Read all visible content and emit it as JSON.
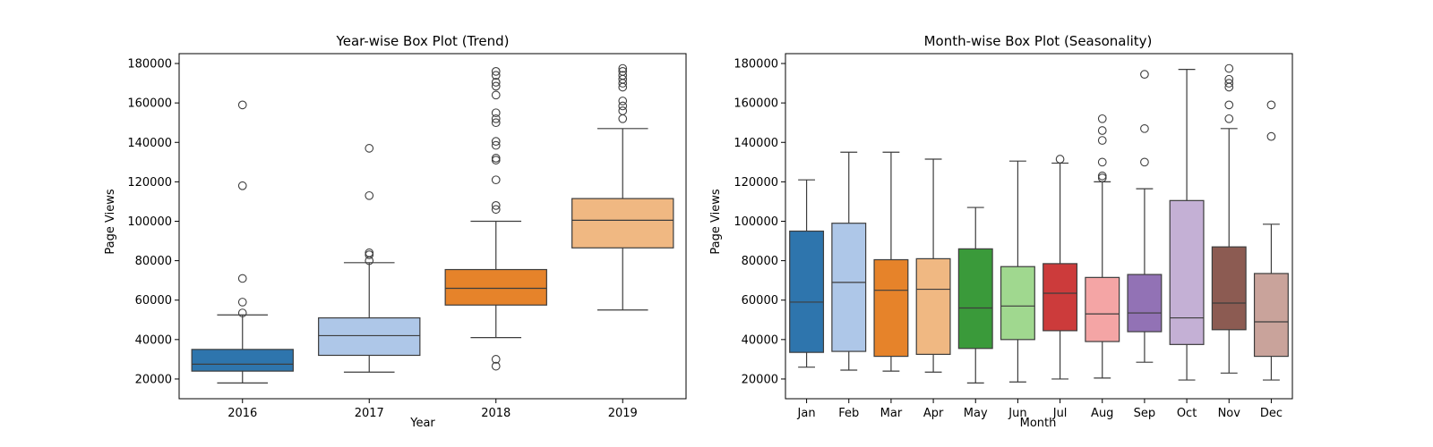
{
  "chart_data": [
    {
      "type": "box",
      "title": "Year-wise Box Plot (Trend)",
      "xlabel": "Year",
      "ylabel": "Page Views",
      "ylim": [
        10000,
        185000
      ],
      "yticks": [
        20000,
        40000,
        60000,
        80000,
        100000,
        120000,
        140000,
        160000,
        180000
      ],
      "ytick_labels": [
        "20000",
        "40000",
        "60000",
        "80000",
        "100000",
        "120000",
        "140000",
        "160000",
        "180000"
      ],
      "categories": [
        "2016",
        "2017",
        "2018",
        "2019"
      ],
      "colors": [
        "#2e75ad",
        "#aec7e8",
        "#e6832a",
        "#f0b882"
      ],
      "boxes": [
        {
          "whislo": 18000,
          "q1": 24000,
          "med": 27500,
          "q3": 35000,
          "whishi": 52500,
          "fliers": [
            53500,
            59000,
            71000,
            118000,
            159000
          ]
        },
        {
          "whislo": 23500,
          "q1": 32000,
          "med": 42000,
          "q3": 51000,
          "whishi": 79000,
          "fliers": [
            80000,
            83000,
            84000,
            113000,
            137000
          ]
        },
        {
          "whislo": 41000,
          "q1": 57500,
          "med": 66000,
          "q3": 75500,
          "whishi": 100000,
          "fliers": [
            26500,
            30000,
            106000,
            108000,
            121000,
            131000,
            132000,
            138500,
            140500,
            150000,
            152000,
            155000,
            164000,
            168500,
            170500,
            174000,
            176000
          ]
        },
        {
          "whislo": 55000,
          "q1": 86500,
          "med": 100500,
          "q3": 111500,
          "whishi": 147000,
          "fliers": [
            152000,
            156000,
            158500,
            161000,
            168000,
            170000,
            172000,
            174000,
            176000,
            177500
          ]
        }
      ]
    },
    {
      "type": "box",
      "title": "Month-wise Box Plot (Seasonality)",
      "xlabel": "Month",
      "ylabel": "Page Views",
      "ylim": [
        10000,
        185000
      ],
      "yticks": [
        20000,
        40000,
        60000,
        80000,
        100000,
        120000,
        140000,
        160000,
        180000
      ],
      "ytick_labels": [
        "20000",
        "40000",
        "60000",
        "80000",
        "100000",
        "120000",
        "140000",
        "160000",
        "180000"
      ],
      "categories": [
        "Jan",
        "Feb",
        "Mar",
        "Apr",
        "May",
        "Jun",
        "Jul",
        "Aug",
        "Sep",
        "Oct",
        "Nov",
        "Dec"
      ],
      "colors": [
        "#2e75ad",
        "#aec7e8",
        "#e6832a",
        "#f0b882",
        "#3a9a3a",
        "#a0d88f",
        "#cc3b3b",
        "#f4a5a5",
        "#9272b5",
        "#c4b0d5",
        "#8c5b52",
        "#c9a39b"
      ],
      "boxes": [
        {
          "whislo": 26000,
          "q1": 33500,
          "med": 59000,
          "q3": 95000,
          "whishi": 121000,
          "fliers": []
        },
        {
          "whislo": 24500,
          "q1": 34000,
          "med": 69000,
          "q3": 99000,
          "whishi": 135000,
          "fliers": []
        },
        {
          "whislo": 24000,
          "q1": 31500,
          "med": 65000,
          "q3": 80500,
          "whishi": 135000,
          "fliers": []
        },
        {
          "whislo": 23500,
          "q1": 32500,
          "med": 65500,
          "q3": 81000,
          "whishi": 131500,
          "fliers": []
        },
        {
          "whislo": 18000,
          "q1": 35500,
          "med": 56000,
          "q3": 86000,
          "whishi": 107000,
          "fliers": []
        },
        {
          "whislo": 18500,
          "q1": 40000,
          "med": 57000,
          "q3": 77000,
          "whishi": 130500,
          "fliers": []
        },
        {
          "whislo": 20000,
          "q1": 44500,
          "med": 63500,
          "q3": 78500,
          "whishi": 129500,
          "fliers": [
            131500
          ]
        },
        {
          "whislo": 20500,
          "q1": 39000,
          "med": 53000,
          "q3": 71500,
          "whishi": 120000,
          "fliers": [
            122000,
            123000,
            130000,
            141000,
            146000,
            152000
          ]
        },
        {
          "whislo": 28500,
          "q1": 44000,
          "med": 53500,
          "q3": 73000,
          "whishi": 116500,
          "fliers": [
            130000,
            147000,
            174500
          ]
        },
        {
          "whislo": 19500,
          "q1": 37500,
          "med": 51000,
          "q3": 110500,
          "whishi": 177000,
          "fliers": []
        },
        {
          "whislo": 23000,
          "q1": 45000,
          "med": 58500,
          "q3": 87000,
          "whishi": 147000,
          "fliers": [
            152000,
            159000,
            168000,
            170000,
            172000,
            177500
          ]
        },
        {
          "whislo": 19500,
          "q1": 31500,
          "med": 49000,
          "q3": 73500,
          "whishi": 98500,
          "fliers": [
            143000,
            159000
          ]
        }
      ]
    }
  ]
}
